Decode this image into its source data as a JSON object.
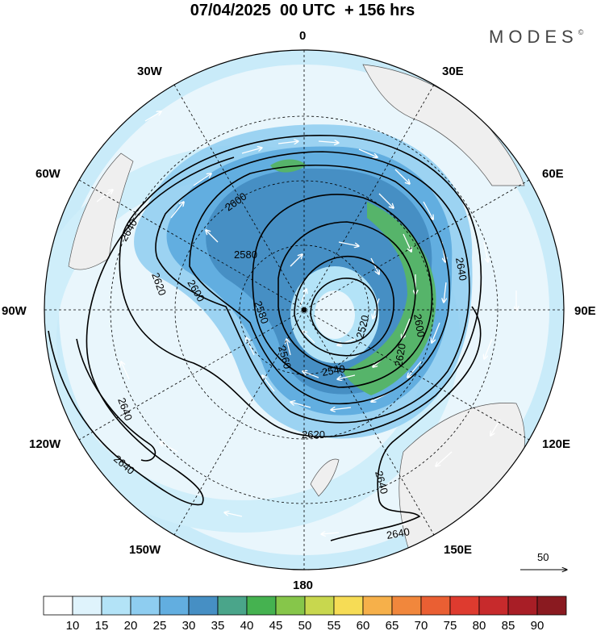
{
  "title": "07/04/2025  00 UTC  + 156 hrs",
  "brand": {
    "name": "MODES",
    "mark": "©"
  },
  "longitude_labels": {
    "lon_0": "0",
    "lon_30e": "30E",
    "lon_60e": "60E",
    "lon_90e": "90E",
    "lon_120e": "120E",
    "lon_150e": "150E",
    "lon_180": "180",
    "lon_150w": "150W",
    "lon_120w": "120W",
    "lon_90w": "90W",
    "lon_60w": "60W",
    "lon_30w": "30W"
  },
  "contour_labels": [
    "2640",
    "2600",
    "2580",
    "2620",
    "2600",
    "2580",
    "2520",
    "2560",
    "2540",
    "2600",
    "2640",
    "2620",
    "2640",
    "2620",
    "2640",
    "2640",
    "2640"
  ],
  "vector_reference": "50",
  "colorbar": {
    "colors": [
      "#ffffff",
      "#dff3fc",
      "#b3e3f7",
      "#8ecdf0",
      "#62aee0",
      "#468fc4",
      "#4aa58a",
      "#45b250",
      "#86c64a",
      "#c8d74e",
      "#f6dc55",
      "#f6b04a",
      "#f1873c",
      "#ea5f33",
      "#de3b2f",
      "#c72a2c",
      "#a81e26",
      "#8a1a20"
    ],
    "labels": [
      "10",
      "15",
      "20",
      "25",
      "30",
      "35",
      "40",
      "45",
      "50",
      "55",
      "60",
      "65",
      "70",
      "75",
      "80",
      "85",
      "90"
    ]
  },
  "map_colors": {
    "ocean": "#e9f6fc",
    "land": "#efefef",
    "jet_core": "#56b46a"
  }
}
